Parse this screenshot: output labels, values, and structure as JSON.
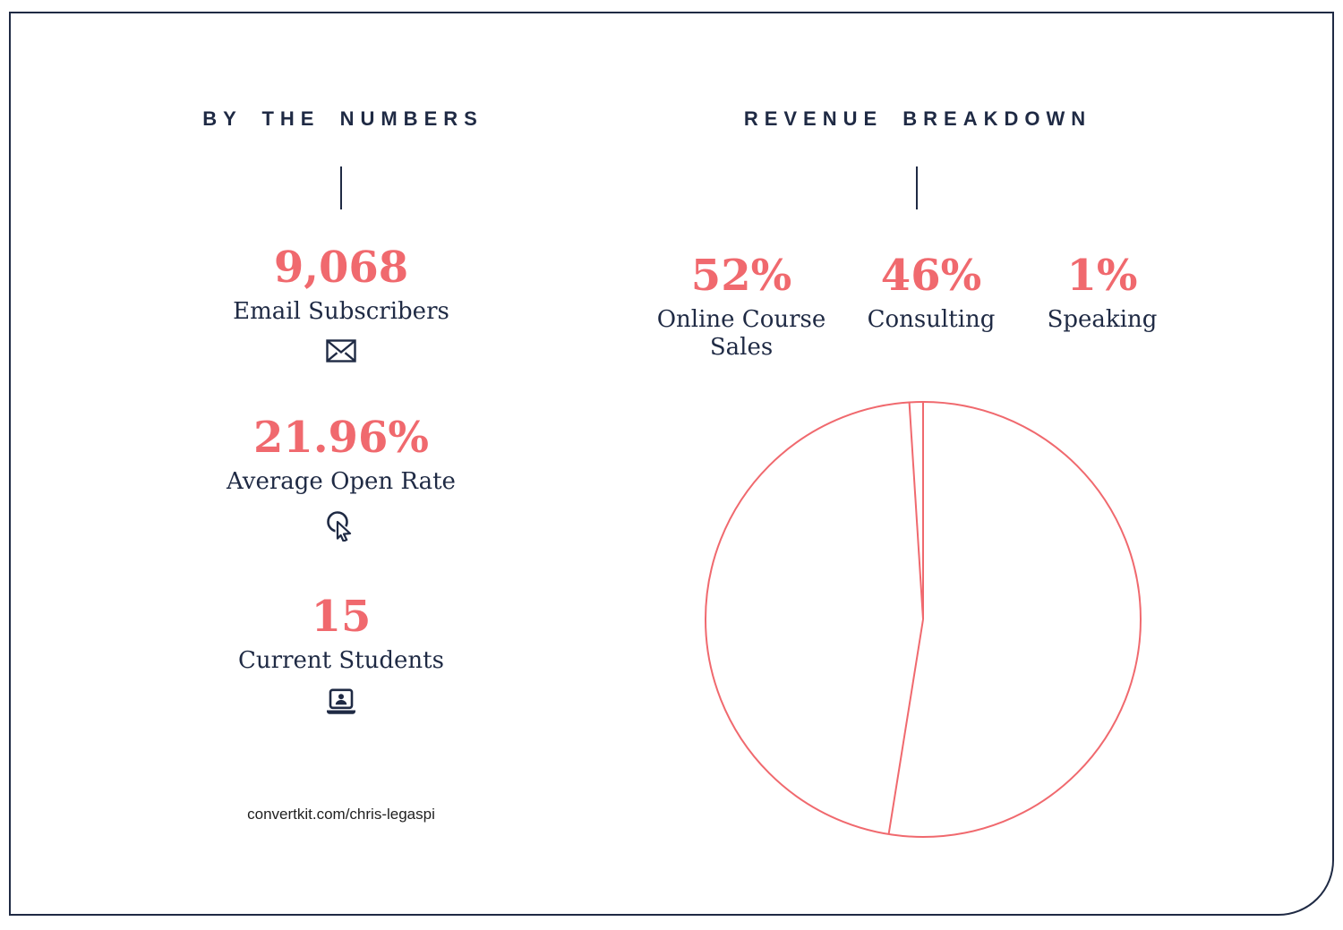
{
  "page": {
    "footer_url": "convertkit.com/chris-legaspi",
    "colors": {
      "navy": "#1F2A44",
      "coral": "#F0696E",
      "background": "#FFFFFF"
    }
  },
  "by_the_numbers": {
    "title": "BY THE NUMBERS",
    "stats": [
      {
        "value": "9,068",
        "label": "Email Subscribers",
        "icon": "envelope-icon"
      },
      {
        "value": "21.96%",
        "label": "Average Open Rate",
        "icon": "cursor-click-icon"
      },
      {
        "value": "15",
        "label": "Current Students",
        "icon": "laptop-person-icon"
      }
    ]
  },
  "revenue_breakdown": {
    "title": "REVENUE BREAKDOWN",
    "items": [
      {
        "value": "52%",
        "label": "Online Course Sales"
      },
      {
        "value": "46%",
        "label": "Consulting"
      },
      {
        "value": "1%",
        "label": "Speaking"
      }
    ]
  },
  "chart_data": {
    "type": "pie",
    "title": "Revenue Breakdown",
    "labels": [
      "Online Course Sales",
      "Consulting",
      "Speaking"
    ],
    "values": [
      52,
      46,
      1
    ],
    "unit": "%",
    "style": "outline-only",
    "stroke_color": "#F0696E",
    "start_angle_deg": 0,
    "direction": "clockwise",
    "legend_position": "above",
    "data_labels_shown": true
  }
}
